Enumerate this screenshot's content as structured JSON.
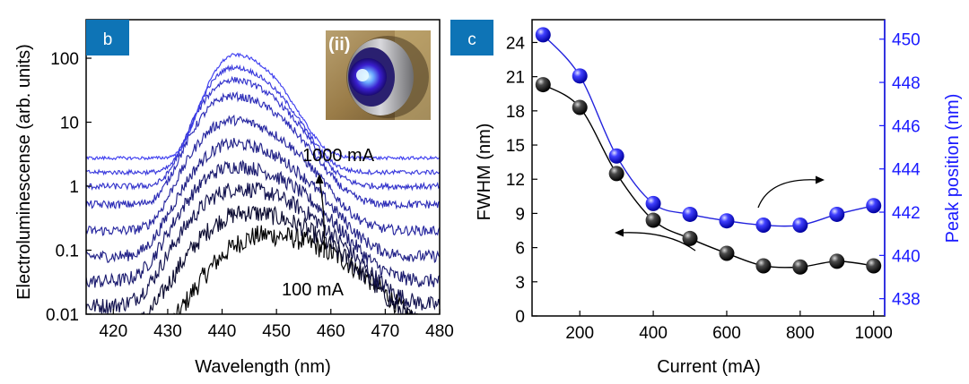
{
  "panels": {
    "b": {
      "label": "b",
      "inset_label": "(ii)"
    },
    "c": {
      "label": "c"
    }
  },
  "chart_data": [
    {
      "type": "line",
      "panel": "b",
      "xlabel": "Wavelength (nm)",
      "ylabel": "Electroluminescense (arb. units)",
      "xlim": [
        415,
        480
      ],
      "ylim": [
        0.01,
        400
      ],
      "yscale": "log",
      "x_ticks": [
        420,
        430,
        440,
        450,
        460,
        470,
        480
      ],
      "y_ticks": [
        {
          "value": 0.01,
          "label": "0.01"
        },
        {
          "value": 0.1,
          "label": "0.1"
        },
        {
          "value": 1,
          "label": "1"
        },
        {
          "value": 10,
          "label": "10"
        },
        {
          "value": 100,
          "label": "100"
        }
      ],
      "annotations": [
        {
          "text": "1000 mA"
        },
        {
          "text": "100 mA"
        }
      ],
      "series": [
        {
          "current_mA": 100,
          "peak_nm": 448.0,
          "peak": 0.17,
          "color": "#000000"
        },
        {
          "current_mA": 200,
          "peak_nm": 444.5,
          "peak": 0.38,
          "color": "#0b0b30"
        },
        {
          "current_mA": 300,
          "peak_nm": 443.0,
          "peak": 0.9,
          "color": "#141450"
        },
        {
          "current_mA": 400,
          "peak_nm": 442.3,
          "peak": 2.0,
          "color": "#1c1c70"
        },
        {
          "current_mA": 500,
          "peak_nm": 442.0,
          "peak": 4.5,
          "color": "#222288"
        },
        {
          "current_mA": 600,
          "peak_nm": 441.8,
          "peak": 10.5,
          "color": "#2828a0"
        },
        {
          "current_mA": 700,
          "peak_nm": 441.7,
          "peak": 25,
          "color": "#2e2eb8"
        },
        {
          "current_mA": 800,
          "peak_nm": 441.8,
          "peak": 45,
          "color": "#3434cc"
        },
        {
          "current_mA": 900,
          "peak_nm": 442.0,
          "peak": 70,
          "color": "#3a3add"
        },
        {
          "current_mA": 1000,
          "peak_nm": 442.4,
          "peak": 110,
          "color": "#3f3ff0"
        }
      ]
    },
    {
      "type": "scatter",
      "panel": "c",
      "xlabel": "Current (mA)",
      "ylabel": "FWHM (nm)",
      "y2label": "Peak position (nm)",
      "xlim": [
        70,
        1030
      ],
      "ylim": [
        0,
        26
      ],
      "y2lim": [
        437.2,
        450.9
      ],
      "x_ticks": [
        200,
        400,
        600,
        800,
        1000
      ],
      "y_ticks": [
        0,
        3,
        6,
        9,
        12,
        15,
        18,
        21,
        24
      ],
      "y2_ticks": [
        438,
        440,
        442,
        444,
        446,
        448,
        450
      ],
      "x": [
        100,
        200,
        300,
        400,
        500,
        600,
        700,
        800,
        900,
        1000
      ],
      "series": [
        {
          "name": "FWHM",
          "axis": "left",
          "color": "#000000",
          "values": [
            20.3,
            18.3,
            12.5,
            8.4,
            6.8,
            5.5,
            4.4,
            4.3,
            4.8,
            4.4
          ]
        },
        {
          "name": "Peak position",
          "axis": "right",
          "color": "#2222dd",
          "values": [
            450.2,
            448.3,
            444.6,
            442.4,
            441.9,
            441.6,
            441.4,
            441.4,
            441.9,
            442.3
          ]
        }
      ]
    }
  ]
}
